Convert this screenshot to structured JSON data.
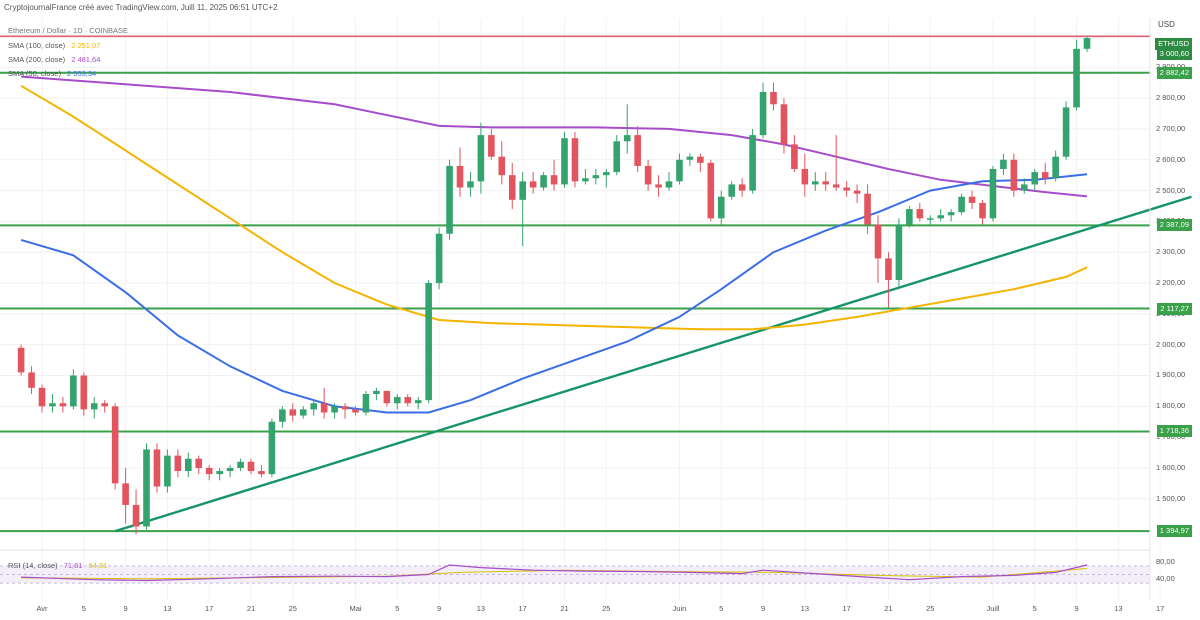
{
  "header": {
    "credit": "CryptojournalFrance créé avec TradingView.com, Juill 11, 2025 06:51 UTC+2",
    "symbol_line": "Ethereum / Dollar · 1D · COINBASE"
  },
  "currency": "USD",
  "indicators": {
    "sma100": {
      "label": "SMA (100, close)",
      "value": "2 251,07",
      "color": "#f4b400"
    },
    "sma200": {
      "label": "SMA (200, close)",
      "value": "2 481,64",
      "color": "#a64dc9"
    },
    "sma50": {
      "label": "SMA (50, close)",
      "value": "2 553,34",
      "color": "#3a6ee8"
    },
    "rsi": {
      "label": "RSI (14, close)",
      "value": "71,81",
      "ma_value": "64,81"
    }
  },
  "colors": {
    "up": "#34a36d",
    "down": "#e2545e",
    "level": "#3aa04a",
    "trend": "#16946a",
    "resistance": "#e06070"
  },
  "chart_data": {
    "type": "candlestick",
    "title": "Ethereum / Dollar",
    "ylim": [
      1350,
      3060
    ],
    "y_ticks": [
      1500,
      1600,
      1700,
      1800,
      1900,
      2000,
      2100,
      2200,
      2300,
      2400,
      2500,
      2600,
      2700,
      2800,
      2900
    ],
    "y_tick_labels": [
      "1 500,00",
      "1 600,00",
      "1 700,00",
      "1 800,00",
      "1 900,00",
      "2 000,00",
      "2 100,00",
      "2 200,00",
      "2 300,00",
      "2 400,00",
      "2 500,00",
      "2 600,00",
      "2 700,00",
      "2 800,00",
      "2 900,00"
    ],
    "x_ticks": [
      {
        "label": "Avr",
        "day": 0
      },
      {
        "label": "5",
        "day": 4
      },
      {
        "label": "9",
        "day": 8
      },
      {
        "label": "13",
        "day": 12
      },
      {
        "label": "17",
        "day": 16
      },
      {
        "label": "21",
        "day": 20
      },
      {
        "label": "25",
        "day": 24
      },
      {
        "label": "Mai",
        "day": 30
      },
      {
        "label": "5",
        "day": 34
      },
      {
        "label": "9",
        "day": 38
      },
      {
        "label": "13",
        "day": 42
      },
      {
        "label": "17",
        "day": 46
      },
      {
        "label": "21",
        "day": 50
      },
      {
        "label": "25",
        "day": 54
      },
      {
        "label": "Juin",
        "day": 61
      },
      {
        "label": "5",
        "day": 65
      },
      {
        "label": "9",
        "day": 69
      },
      {
        "label": "13",
        "day": 73
      },
      {
        "label": "17",
        "day": 77
      },
      {
        "label": "21",
        "day": 81
      },
      {
        "label": "25",
        "day": 85
      },
      {
        "label": "Juill",
        "day": 91
      },
      {
        "label": "5",
        "day": 95
      },
      {
        "label": "9",
        "day": 99
      },
      {
        "label": "13",
        "day": 103
      },
      {
        "label": "17",
        "day": 107
      }
    ],
    "levels": [
      {
        "value": 3000.6,
        "label": "",
        "kind": "resistance"
      },
      {
        "value": 2882.42,
        "label": "2 882,42",
        "kind": "support"
      },
      {
        "value": 2387.09,
        "label": "2 387,09",
        "kind": "support"
      },
      {
        "value": 2117.27,
        "label": "2 117,27",
        "kind": "support"
      },
      {
        "value": 1718.36,
        "label": "1 718,36",
        "kind": "support"
      },
      {
        "value": 1394.97,
        "label": "1 394,97",
        "kind": "support"
      }
    ],
    "current_price": {
      "label": "ETHUSD",
      "value": "3 000,60"
    },
    "trendline": [
      {
        "day": 7,
        "value": 1395
      },
      {
        "day": 110,
        "value": 2480
      }
    ],
    "candles": [
      {
        "day": -2,
        "o": 1990,
        "h": 2000,
        "l": 1900,
        "c": 1910
      },
      {
        "day": -1,
        "o": 1910,
        "h": 1930,
        "l": 1840,
        "c": 1860
      },
      {
        "day": 0,
        "o": 1860,
        "h": 1870,
        "l": 1780,
        "c": 1800
      },
      {
        "day": 1,
        "o": 1800,
        "h": 1840,
        "l": 1780,
        "c": 1810
      },
      {
        "day": 2,
        "o": 1810,
        "h": 1830,
        "l": 1780,
        "c": 1800
      },
      {
        "day": 3,
        "o": 1800,
        "h": 1920,
        "l": 1790,
        "c": 1900
      },
      {
        "day": 4,
        "o": 1900,
        "h": 1910,
        "l": 1770,
        "c": 1790
      },
      {
        "day": 5,
        "o": 1790,
        "h": 1830,
        "l": 1760,
        "c": 1810
      },
      {
        "day": 6,
        "o": 1810,
        "h": 1820,
        "l": 1780,
        "c": 1800
      },
      {
        "day": 7,
        "o": 1800,
        "h": 1810,
        "l": 1530,
        "c": 1550
      },
      {
        "day": 8,
        "o": 1550,
        "h": 1600,
        "l": 1420,
        "c": 1480
      },
      {
        "day": 9,
        "o": 1480,
        "h": 1530,
        "l": 1385,
        "c": 1410
      },
      {
        "day": 10,
        "o": 1410,
        "h": 1680,
        "l": 1400,
        "c": 1660
      },
      {
        "day": 11,
        "o": 1660,
        "h": 1680,
        "l": 1520,
        "c": 1540
      },
      {
        "day": 12,
        "o": 1540,
        "h": 1660,
        "l": 1520,
        "c": 1640
      },
      {
        "day": 13,
        "o": 1640,
        "h": 1660,
        "l": 1570,
        "c": 1590
      },
      {
        "day": 14,
        "o": 1590,
        "h": 1650,
        "l": 1570,
        "c": 1630
      },
      {
        "day": 15,
        "o": 1630,
        "h": 1640,
        "l": 1580,
        "c": 1600
      },
      {
        "day": 16,
        "o": 1600,
        "h": 1610,
        "l": 1560,
        "c": 1580
      },
      {
        "day": 17,
        "o": 1580,
        "h": 1600,
        "l": 1560,
        "c": 1590
      },
      {
        "day": 18,
        "o": 1590,
        "h": 1610,
        "l": 1570,
        "c": 1600
      },
      {
        "day": 19,
        "o": 1600,
        "h": 1630,
        "l": 1590,
        "c": 1620
      },
      {
        "day": 20,
        "o": 1620,
        "h": 1630,
        "l": 1580,
        "c": 1590
      },
      {
        "day": 21,
        "o": 1590,
        "h": 1610,
        "l": 1570,
        "c": 1580
      },
      {
        "day": 22,
        "o": 1580,
        "h": 1760,
        "l": 1570,
        "c": 1750
      },
      {
        "day": 23,
        "o": 1750,
        "h": 1800,
        "l": 1730,
        "c": 1790
      },
      {
        "day": 24,
        "o": 1790,
        "h": 1810,
        "l": 1750,
        "c": 1770
      },
      {
        "day": 25,
        "o": 1770,
        "h": 1800,
        "l": 1760,
        "c": 1790
      },
      {
        "day": 26,
        "o": 1790,
        "h": 1820,
        "l": 1770,
        "c": 1810
      },
      {
        "day": 27,
        "o": 1810,
        "h": 1860,
        "l": 1760,
        "c": 1780
      },
      {
        "day": 28,
        "o": 1780,
        "h": 1810,
        "l": 1760,
        "c": 1800
      },
      {
        "day": 29,
        "o": 1800,
        "h": 1810,
        "l": 1760,
        "c": 1790
      },
      {
        "day": 30,
        "o": 1790,
        "h": 1800,
        "l": 1770,
        "c": 1780
      },
      {
        "day": 31,
        "o": 1780,
        "h": 1850,
        "l": 1770,
        "c": 1840
      },
      {
        "day": 32,
        "o": 1840,
        "h": 1860,
        "l": 1820,
        "c": 1850
      },
      {
        "day": 33,
        "o": 1850,
        "h": 1850,
        "l": 1800,
        "c": 1810
      },
      {
        "day": 34,
        "o": 1810,
        "h": 1840,
        "l": 1790,
        "c": 1830
      },
      {
        "day": 35,
        "o": 1830,
        "h": 1840,
        "l": 1800,
        "c": 1810
      },
      {
        "day": 36,
        "o": 1810,
        "h": 1830,
        "l": 1790,
        "c": 1820
      },
      {
        "day": 37,
        "o": 1820,
        "h": 2210,
        "l": 1810,
        "c": 2200
      },
      {
        "day": 38,
        "o": 2200,
        "h": 2380,
        "l": 2180,
        "c": 2360
      },
      {
        "day": 39,
        "o": 2360,
        "h": 2600,
        "l": 2340,
        "c": 2580
      },
      {
        "day": 40,
        "o": 2580,
        "h": 2640,
        "l": 2480,
        "c": 2510
      },
      {
        "day": 41,
        "o": 2510,
        "h": 2560,
        "l": 2480,
        "c": 2530
      },
      {
        "day": 42,
        "o": 2530,
        "h": 2720,
        "l": 2490,
        "c": 2680
      },
      {
        "day": 43,
        "o": 2680,
        "h": 2700,
        "l": 2600,
        "c": 2610
      },
      {
        "day": 44,
        "o": 2610,
        "h": 2660,
        "l": 2520,
        "c": 2550
      },
      {
        "day": 45,
        "o": 2550,
        "h": 2590,
        "l": 2440,
        "c": 2470
      },
      {
        "day": 46,
        "o": 2470,
        "h": 2560,
        "l": 2320,
        "c": 2530
      },
      {
        "day": 47,
        "o": 2530,
        "h": 2560,
        "l": 2490,
        "c": 2510
      },
      {
        "day": 48,
        "o": 2510,
        "h": 2560,
        "l": 2500,
        "c": 2550
      },
      {
        "day": 49,
        "o": 2550,
        "h": 2600,
        "l": 2500,
        "c": 2520
      },
      {
        "day": 50,
        "o": 2520,
        "h": 2690,
        "l": 2510,
        "c": 2670
      },
      {
        "day": 51,
        "o": 2670,
        "h": 2690,
        "l": 2510,
        "c": 2530
      },
      {
        "day": 52,
        "o": 2530,
        "h": 2570,
        "l": 2520,
        "c": 2540
      },
      {
        "day": 53,
        "o": 2540,
        "h": 2570,
        "l": 2520,
        "c": 2550
      },
      {
        "day": 54,
        "o": 2550,
        "h": 2570,
        "l": 2510,
        "c": 2560
      },
      {
        "day": 55,
        "o": 2560,
        "h": 2680,
        "l": 2550,
        "c": 2660
      },
      {
        "day": 56,
        "o": 2660,
        "h": 2780,
        "l": 2620,
        "c": 2680
      },
      {
        "day": 57,
        "o": 2680,
        "h": 2710,
        "l": 2560,
        "c": 2580
      },
      {
        "day": 58,
        "o": 2580,
        "h": 2600,
        "l": 2500,
        "c": 2520
      },
      {
        "day": 59,
        "o": 2520,
        "h": 2550,
        "l": 2480,
        "c": 2510
      },
      {
        "day": 60,
        "o": 2510,
        "h": 2560,
        "l": 2500,
        "c": 2530
      },
      {
        "day": 61,
        "o": 2530,
        "h": 2620,
        "l": 2520,
        "c": 2600
      },
      {
        "day": 62,
        "o": 2600,
        "h": 2620,
        "l": 2580,
        "c": 2610
      },
      {
        "day": 63,
        "o": 2610,
        "h": 2620,
        "l": 2560,
        "c": 2590
      },
      {
        "day": 64,
        "o": 2590,
        "h": 2600,
        "l": 2400,
        "c": 2410
      },
      {
        "day": 65,
        "o": 2410,
        "h": 2500,
        "l": 2390,
        "c": 2480
      },
      {
        "day": 66,
        "o": 2480,
        "h": 2530,
        "l": 2470,
        "c": 2520
      },
      {
        "day": 67,
        "o": 2520,
        "h": 2540,
        "l": 2480,
        "c": 2500
      },
      {
        "day": 68,
        "o": 2500,
        "h": 2700,
        "l": 2490,
        "c": 2680
      },
      {
        "day": 69,
        "o": 2680,
        "h": 2850,
        "l": 2670,
        "c": 2820
      },
      {
        "day": 70,
        "o": 2820,
        "h": 2850,
        "l": 2760,
        "c": 2780
      },
      {
        "day": 71,
        "o": 2780,
        "h": 2800,
        "l": 2620,
        "c": 2650
      },
      {
        "day": 72,
        "o": 2650,
        "h": 2680,
        "l": 2560,
        "c": 2570
      },
      {
        "day": 73,
        "o": 2570,
        "h": 2620,
        "l": 2480,
        "c": 2520
      },
      {
        "day": 74,
        "o": 2520,
        "h": 2560,
        "l": 2500,
        "c": 2530
      },
      {
        "day": 75,
        "o": 2530,
        "h": 2560,
        "l": 2500,
        "c": 2520
      },
      {
        "day": 76,
        "o": 2520,
        "h": 2680,
        "l": 2500,
        "c": 2510
      },
      {
        "day": 77,
        "o": 2510,
        "h": 2530,
        "l": 2480,
        "c": 2500
      },
      {
        "day": 78,
        "o": 2500,
        "h": 2520,
        "l": 2460,
        "c": 2490
      },
      {
        "day": 79,
        "o": 2490,
        "h": 2520,
        "l": 2360,
        "c": 2390
      },
      {
        "day": 80,
        "o": 2390,
        "h": 2420,
        "l": 2200,
        "c": 2280
      },
      {
        "day": 81,
        "o": 2280,
        "h": 2300,
        "l": 2120,
        "c": 2210
      },
      {
        "day": 82,
        "o": 2210,
        "h": 2410,
        "l": 2190,
        "c": 2390
      },
      {
        "day": 83,
        "o": 2390,
        "h": 2450,
        "l": 2380,
        "c": 2440
      },
      {
        "day": 84,
        "o": 2440,
        "h": 2460,
        "l": 2400,
        "c": 2410
      },
      {
        "day": 85,
        "o": 2410,
        "h": 2420,
        "l": 2390,
        "c": 2410
      },
      {
        "day": 86,
        "o": 2410,
        "h": 2440,
        "l": 2400,
        "c": 2420
      },
      {
        "day": 87,
        "o": 2420,
        "h": 2440,
        "l": 2400,
        "c": 2430
      },
      {
        "day": 88,
        "o": 2430,
        "h": 2490,
        "l": 2420,
        "c": 2480
      },
      {
        "day": 89,
        "o": 2480,
        "h": 2500,
        "l": 2440,
        "c": 2460
      },
      {
        "day": 90,
        "o": 2460,
        "h": 2470,
        "l": 2390,
        "c": 2410
      },
      {
        "day": 91,
        "o": 2410,
        "h": 2580,
        "l": 2400,
        "c": 2570
      },
      {
        "day": 92,
        "o": 2570,
        "h": 2620,
        "l": 2550,
        "c": 2600
      },
      {
        "day": 93,
        "o": 2600,
        "h": 2620,
        "l": 2480,
        "c": 2500
      },
      {
        "day": 94,
        "o": 2500,
        "h": 2540,
        "l": 2490,
        "c": 2520
      },
      {
        "day": 95,
        "o": 2520,
        "h": 2570,
        "l": 2500,
        "c": 2560
      },
      {
        "day": 96,
        "o": 2560,
        "h": 2590,
        "l": 2520,
        "c": 2540
      },
      {
        "day": 97,
        "o": 2540,
        "h": 2630,
        "l": 2530,
        "c": 2610
      },
      {
        "day": 98,
        "o": 2610,
        "h": 2790,
        "l": 2600,
        "c": 2770
      },
      {
        "day": 99,
        "o": 2770,
        "h": 2990,
        "l": 2760,
        "c": 2960
      },
      {
        "day": 100,
        "o": 2960,
        "h": 3000,
        "l": 2950,
        "c": 2995
      }
    ],
    "sma50": [
      [
        -2,
        2340
      ],
      [
        3,
        2290
      ],
      [
        8,
        2170
      ],
      [
        13,
        2030
      ],
      [
        18,
        1930
      ],
      [
        23,
        1850
      ],
      [
        28,
        1800
      ],
      [
        33,
        1780
      ],
      [
        37,
        1780
      ],
      [
        41,
        1820
      ],
      [
        46,
        1890
      ],
      [
        51,
        1950
      ],
      [
        56,
        2010
      ],
      [
        61,
        2090
      ],
      [
        65,
        2180
      ],
      [
        70,
        2300
      ],
      [
        75,
        2370
      ],
      [
        80,
        2430
      ],
      [
        85,
        2500
      ],
      [
        90,
        2530
      ],
      [
        95,
        2535
      ],
      [
        100,
        2553
      ]
    ],
    "sma100": [
      [
        -2,
        2840
      ],
      [
        3,
        2740
      ],
      [
        8,
        2630
      ],
      [
        13,
        2520
      ],
      [
        18,
        2410
      ],
      [
        23,
        2300
      ],
      [
        28,
        2200
      ],
      [
        33,
        2130
      ],
      [
        38,
        2080
      ],
      [
        43,
        2070
      ],
      [
        48,
        2065
      ],
      [
        53,
        2060
      ],
      [
        58,
        2055
      ],
      [
        63,
        2050
      ],
      [
        68,
        2050
      ],
      [
        73,
        2065
      ],
      [
        78,
        2090
      ],
      [
        83,
        2120
      ],
      [
        88,
        2150
      ],
      [
        93,
        2180
      ],
      [
        98,
        2220
      ],
      [
        100,
        2251
      ]
    ],
    "sma200": [
      [
        -2,
        2870
      ],
      [
        8,
        2845
      ],
      [
        18,
        2820
      ],
      [
        28,
        2780
      ],
      [
        38,
        2710
      ],
      [
        43,
        2705
      ],
      [
        53,
        2705
      ],
      [
        60,
        2700
      ],
      [
        66,
        2680
      ],
      [
        71,
        2650
      ],
      [
        76,
        2610
      ],
      [
        81,
        2570
      ],
      [
        86,
        2535
      ],
      [
        91,
        2515
      ],
      [
        96,
        2495
      ],
      [
        100,
        2481
      ]
    ],
    "rsi_ylim": [
      0,
      100
    ],
    "rsi_ticks": [
      40,
      80
    ],
    "rsi": [
      [
        -2,
        44
      ],
      [
        5,
        38
      ],
      [
        10,
        36
      ],
      [
        16,
        40
      ],
      [
        22,
        45
      ],
      [
        28,
        46
      ],
      [
        33,
        45
      ],
      [
        37,
        50
      ],
      [
        39,
        72
      ],
      [
        42,
        66
      ],
      [
        47,
        60
      ],
      [
        52,
        58
      ],
      [
        57,
        57
      ],
      [
        62,
        55
      ],
      [
        67,
        52
      ],
      [
        69,
        60
      ],
      [
        74,
        52
      ],
      [
        79,
        44
      ],
      [
        83,
        38
      ],
      [
        88,
        45
      ],
      [
        93,
        48
      ],
      [
        97,
        55
      ],
      [
        100,
        72
      ]
    ],
    "rsi_ma": [
      [
        -2,
        42
      ],
      [
        10,
        40
      ],
      [
        22,
        43
      ],
      [
        33,
        46
      ],
      [
        40,
        55
      ],
      [
        50,
        60
      ],
      [
        60,
        57
      ],
      [
        70,
        55
      ],
      [
        80,
        48
      ],
      [
        90,
        44
      ],
      [
        100,
        64
      ]
    ]
  }
}
